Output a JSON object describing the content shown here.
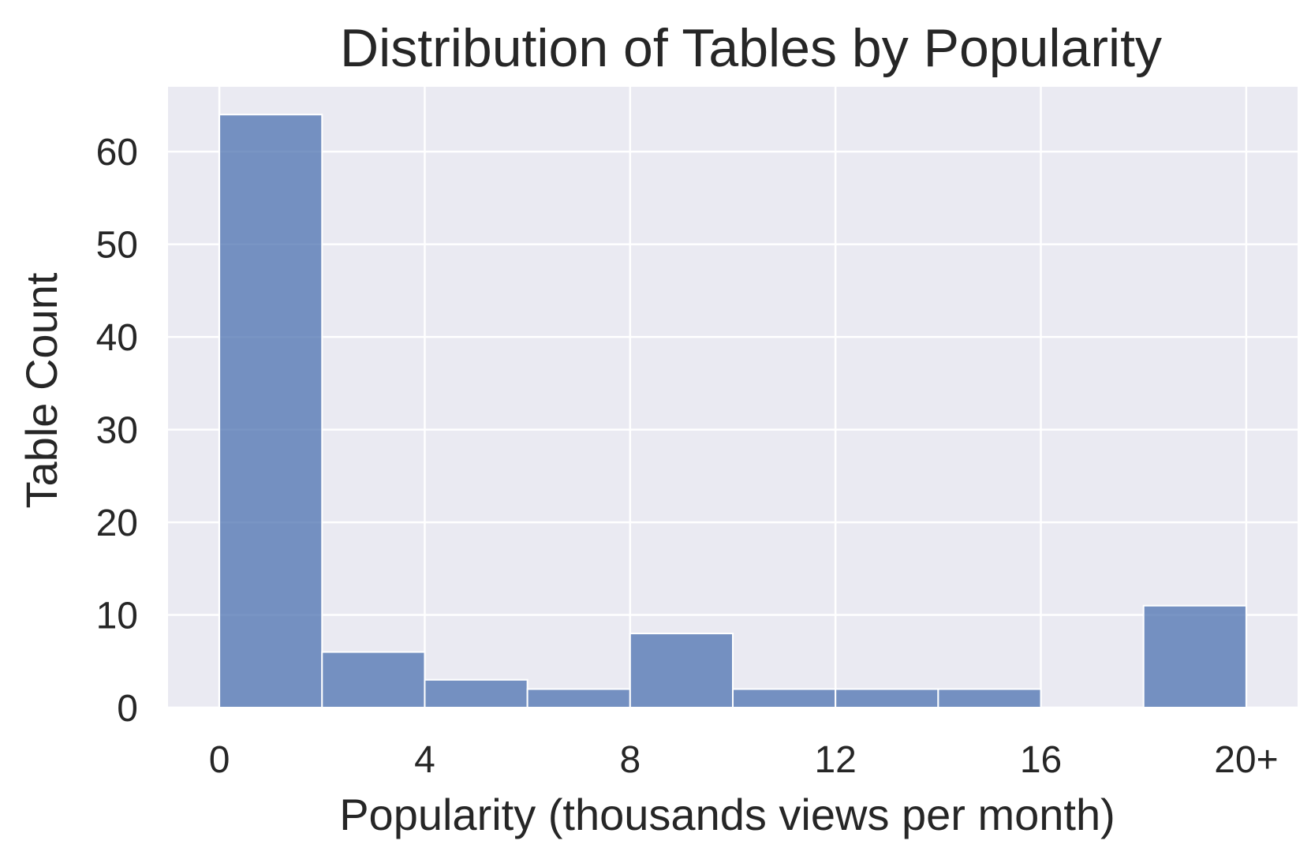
{
  "chart_data": {
    "type": "bar",
    "title": "Distribution of Tables by Popularity",
    "xlabel": "Popularity (thousands views per month)",
    "ylabel": "Table Count",
    "bins": [
      {
        "x0": 0,
        "x1": 2,
        "count": 64
      },
      {
        "x0": 2,
        "x1": 4,
        "count": 6
      },
      {
        "x0": 4,
        "x1": 6,
        "count": 3
      },
      {
        "x0": 6,
        "x1": 8,
        "count": 2
      },
      {
        "x0": 8,
        "x1": 10,
        "count": 8
      },
      {
        "x0": 10,
        "x1": 12,
        "count": 2
      },
      {
        "x0": 12,
        "x1": 14,
        "count": 2
      },
      {
        "x0": 14,
        "x1": 16,
        "count": 2
      },
      {
        "x0": 16,
        "x1": 18,
        "count": 0
      },
      {
        "x0": 18,
        "x1": 20,
        "count": 11
      }
    ],
    "xlim": [
      -1,
      21
    ],
    "ylim": [
      0,
      67
    ],
    "xticks": [
      0,
      4,
      8,
      12,
      16,
      20
    ],
    "xtick_labels": [
      "0",
      "4",
      "8",
      "12",
      "16",
      "20+"
    ],
    "yticks": [
      0,
      10,
      20,
      30,
      40,
      50,
      60
    ],
    "ytick_labels": [
      "0",
      "10",
      "20",
      "30",
      "40",
      "50",
      "60"
    ],
    "grid": true,
    "colors": {
      "bar": "#4c72b0",
      "plot_background": "#eaeaf2",
      "grid": "#ffffff"
    },
    "bar_opacity": 0.75
  }
}
